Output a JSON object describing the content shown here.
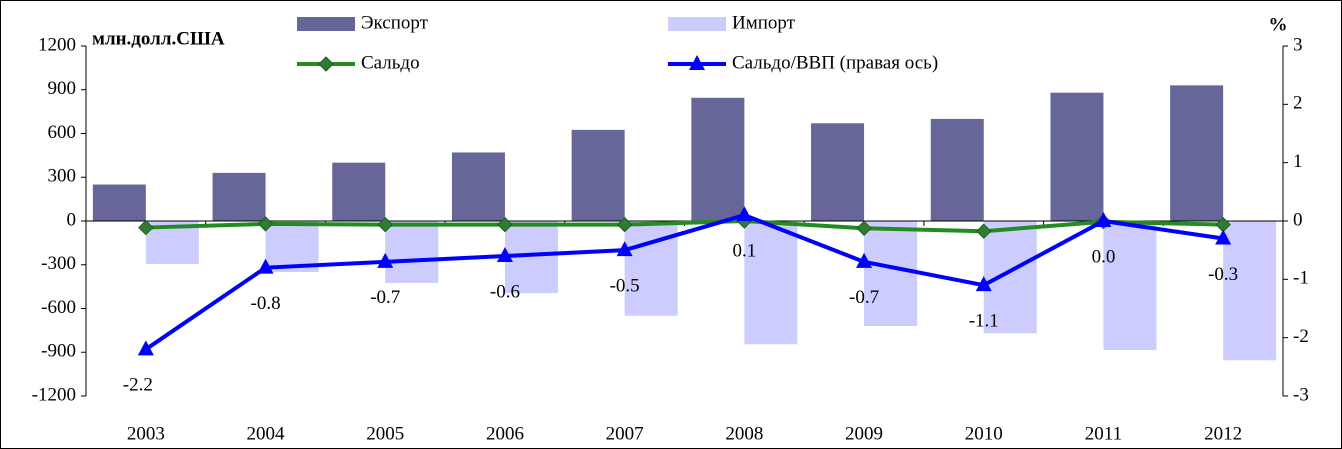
{
  "chart_data": {
    "type": "bar-line",
    "y_label": "млн.долл.США",
    "y2_label": "%",
    "categories": [
      "2003",
      "2004",
      "2005",
      "2006",
      "2007",
      "2008",
      "2009",
      "2010",
      "2011",
      "2012"
    ],
    "series": [
      {
        "name": "Экспорт",
        "type": "bar",
        "color": "#666699",
        "values": [
          250,
          330,
          400,
          470,
          625,
          845,
          670,
          700,
          880,
          930
        ]
      },
      {
        "name": "Импорт",
        "type": "bar",
        "color": "#ccccff",
        "values": [
          -295,
          -350,
          -425,
          -495,
          -650,
          -845,
          -720,
          -770,
          -885,
          -955
        ]
      },
      {
        "name": "Сальдо",
        "type": "line",
        "color": "#228b22",
        "marker": "diamond",
        "values": [
          -45,
          -20,
          -25,
          -25,
          -25,
          0,
          -50,
          -70,
          -5,
          -25
        ]
      },
      {
        "name": "Сальдо/ВВП (правая ось)",
        "type": "line",
        "axis": "y2",
        "color": "#0000ff",
        "marker": "triangle",
        "values": [
          -2.2,
          -0.8,
          -0.7,
          -0.6,
          -0.5,
          0.1,
          -0.7,
          -1.1,
          0.0,
          -0.3
        ],
        "value_labels": [
          "-2.2",
          "-0.8",
          "-0.7",
          "-0.6",
          "-0.5",
          "0.1",
          "-0.7",
          "-1.1",
          "0.0",
          "-0.3"
        ]
      }
    ],
    "ylim": [
      -1200,
      1200
    ],
    "yticks": [
      -1200,
      -900,
      -600,
      -300,
      0,
      300,
      600,
      900,
      1200
    ],
    "y2lim": [
      -3,
      3
    ],
    "y2ticks": [
      -3,
      -2,
      -1,
      0,
      1,
      2,
      3
    ]
  }
}
